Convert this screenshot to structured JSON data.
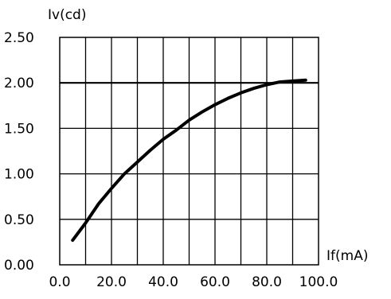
{
  "chart_data": {
    "type": "line",
    "title": "",
    "xlabel": "If(mA)",
    "ylabel": "Iv(cd)",
    "xlim": [
      0,
      100
    ],
    "ylim": [
      0,
      2.5
    ],
    "x_ticks": [
      "0.0",
      "20.0",
      "40.0",
      "60.0",
      "80.0",
      "100.0"
    ],
    "x_tick_values": [
      0,
      20,
      40,
      60,
      80,
      100
    ],
    "y_ticks": [
      "0.00",
      "0.50",
      "1.00",
      "1.50",
      "2.00",
      "2.50"
    ],
    "y_tick_values": [
      0,
      0.5,
      1.0,
      1.5,
      2.0,
      2.5
    ],
    "grid": true,
    "series": [
      {
        "x": [
          5,
          10,
          15,
          20,
          25,
          30,
          35,
          40,
          45,
          50,
          55,
          60,
          65,
          70,
          75,
          80,
          85,
          90,
          95
        ],
        "y": [
          0.27,
          0.46,
          0.67,
          0.84,
          1.0,
          1.13,
          1.26,
          1.38,
          1.48,
          1.59,
          1.68,
          1.76,
          1.83,
          1.89,
          1.94,
          1.98,
          2.01,
          2.02,
          2.03
        ]
      }
    ],
    "reference_lines": [
      {
        "axis": "y",
        "value": 2.0
      }
    ]
  }
}
